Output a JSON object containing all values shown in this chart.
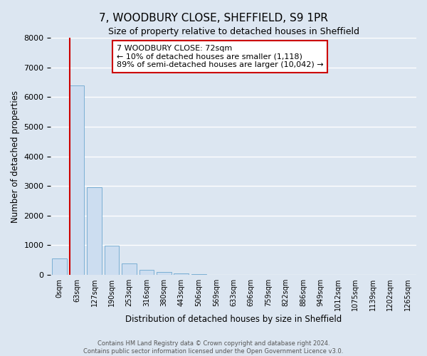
{
  "title": "7, WOODBURY CLOSE, SHEFFIELD, S9 1PR",
  "subtitle": "Size of property relative to detached houses in Sheffield",
  "xlabel": "Distribution of detached houses by size in Sheffield",
  "ylabel": "Number of detached properties",
  "bar_labels": [
    "0sqm",
    "63sqm",
    "127sqm",
    "190sqm",
    "253sqm",
    "316sqm",
    "380sqm",
    "443sqm",
    "506sqm",
    "569sqm",
    "633sqm",
    "696sqm",
    "759sqm",
    "822sqm",
    "886sqm",
    "949sqm",
    "1012sqm",
    "1075sqm",
    "1139sqm",
    "1202sqm",
    "1265sqm"
  ],
  "bar_values": [
    560,
    6380,
    2950,
    990,
    380,
    175,
    100,
    60,
    15,
    0,
    0,
    0,
    0,
    0,
    0,
    0,
    0,
    0,
    0,
    0,
    0
  ],
  "bar_color": "#ccddf0",
  "bar_edge_color": "#7bafd4",
  "ylim": [
    0,
    8000
  ],
  "yticks": [
    0,
    1000,
    2000,
    3000,
    4000,
    5000,
    6000,
    7000,
    8000
  ],
  "vline_color": "#cc0000",
  "annotation_title": "7 WOODBURY CLOSE: 72sqm",
  "annotation_line1": "← 10% of detached houses are smaller (1,118)",
  "annotation_line2": "89% of semi-detached houses are larger (10,042) →",
  "annotation_box_color": "#cc0000",
  "footer1": "Contains HM Land Registry data © Crown copyright and database right 2024.",
  "footer2": "Contains public sector information licensed under the Open Government Licence v3.0.",
  "background_color": "#dce6f1",
  "grid_color": "white"
}
